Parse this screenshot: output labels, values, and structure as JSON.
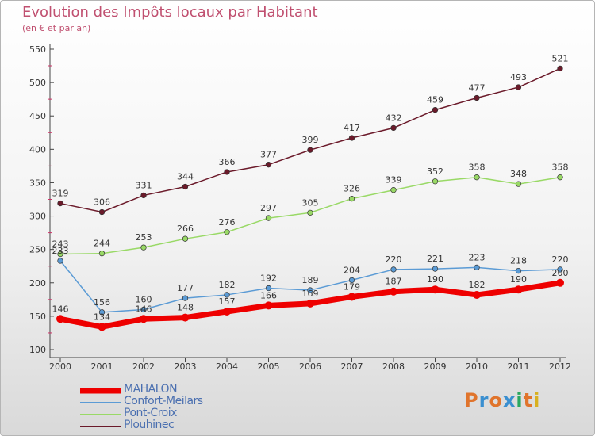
{
  "header": {
    "title": "Evolution des Impôts locaux par Habitant",
    "subtitle": "(en € et par an)"
  },
  "logo": {
    "letters": [
      "P",
      "r",
      "o",
      "x",
      "i",
      "t",
      "i"
    ],
    "colors": [
      "#e0742c",
      "#3a8fd0",
      "#e0742c",
      "#3a8fd0",
      "#2aa860",
      "#e0742c",
      "#d8b020"
    ]
  },
  "chart_data": {
    "type": "line",
    "x": [
      2000,
      2001,
      2002,
      2003,
      2004,
      2005,
      2006,
      2007,
      2008,
      2009,
      2010,
      2011,
      2012
    ],
    "ylim": [
      100,
      550
    ],
    "yticks": [
      100,
      150,
      200,
      250,
      300,
      350,
      400,
      450,
      500,
      550
    ],
    "grid": false,
    "legend": "bottom-left",
    "series": [
      {
        "name": "MAHALON",
        "color": "#ee0000",
        "values": [
          146,
          134,
          146,
          148,
          157,
          166,
          169,
          179,
          187,
          190,
          182,
          190,
          200
        ]
      },
      {
        "name": "Confort-Meilars",
        "color": "#5b9bd5",
        "values": [
          233,
          156,
          160,
          177,
          182,
          192,
          189,
          204,
          220,
          221,
          223,
          218,
          220
        ]
      },
      {
        "name": "Pont-Croix",
        "color": "#99d966",
        "values": [
          243,
          244,
          253,
          266,
          276,
          297,
          305,
          326,
          339,
          352,
          358,
          348,
          358
        ]
      },
      {
        "name": "Plouhinec",
        "color": "#6b1a2a",
        "values": [
          319,
          306,
          331,
          344,
          366,
          377,
          399,
          417,
          432,
          459,
          477,
          493,
          521
        ]
      }
    ]
  }
}
